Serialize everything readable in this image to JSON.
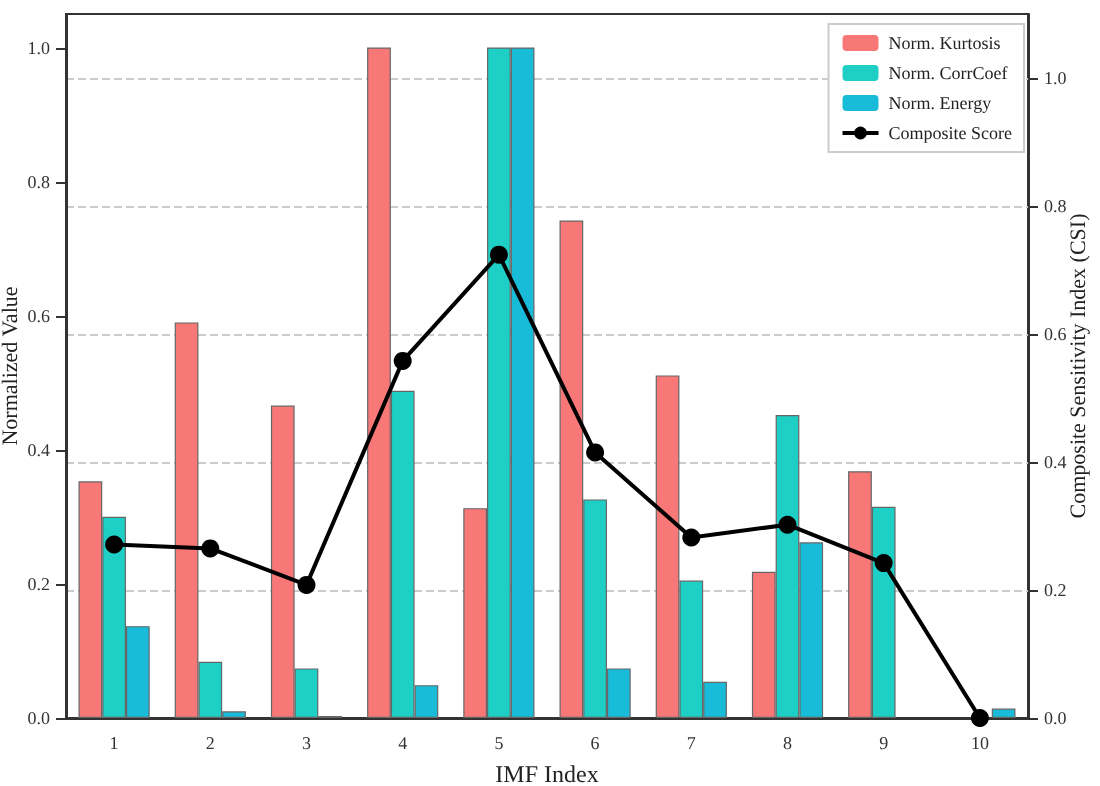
{
  "chart_data": {
    "type": "bar",
    "xlabel": "IMF Index",
    "ylabel": "Normalized Value",
    "y2label": "Composite Sensitivity Index (CSI)",
    "categories": [
      "1",
      "2",
      "3",
      "4",
      "5",
      "6",
      "7",
      "8",
      "9",
      "10"
    ],
    "series": [
      {
        "name": "Norm. Kurtosis",
        "color": "#f87878",
        "values": [
          0.353,
          0.59,
          0.466,
          1.0,
          0.313,
          0.742,
          0.511,
          0.218,
          0.368,
          null
        ]
      },
      {
        "name": "Norm. CorrCoef",
        "color": "#1ecfc6",
        "values": [
          0.3,
          0.084,
          0.074,
          0.488,
          1.0,
          0.326,
          0.205,
          0.452,
          0.315,
          null
        ]
      },
      {
        "name": "Norm. Energy",
        "color": "#18bcd8",
        "values": [
          0.137,
          0.01,
          0.003,
          0.049,
          1.0,
          0.074,
          0.054,
          0.262,
          null,
          0.014
        ]
      },
      {
        "name": "Composite Score",
        "type": "line",
        "axis": "y2",
        "color": "#000000",
        "marker": "circle",
        "values": [
          0.271,
          0.265,
          0.208,
          0.558,
          0.724,
          0.415,
          0.282,
          0.302,
          0.242,
          0
        ]
      }
    ],
    "ylim": [
      0,
      1.05
    ],
    "yticks": [
      {
        "value": 0,
        "label": "0.0"
      },
      0.2,
      0.4,
      0.6,
      0.8,
      {
        "value": 1,
        "label": "1.0"
      }
    ],
    "y2lim": [
      0,
      1.1
    ],
    "y2ticks": [
      {
        "value": 0,
        "label": "0.0"
      },
      0.2,
      0.4,
      0.6,
      0.8,
      {
        "value": 1,
        "label": "1.0"
      }
    ],
    "grid": "y2",
    "legend": "top right"
  }
}
